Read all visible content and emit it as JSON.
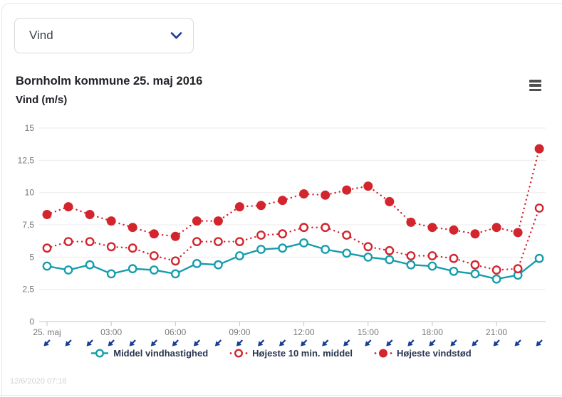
{
  "dropdown": {
    "value": "Vind"
  },
  "header": {
    "title": "Bornholm kommune 25. maj 2016",
    "subtitle": "Vind (m/s)"
  },
  "menu_icon": "hamburger-icon",
  "footer": {
    "timestamp": "12/6/2020 07:18"
  },
  "colors": {
    "teal": "#169dad",
    "red": "#d2252e",
    "navy_arrow": "#1b3e93",
    "legend_text": "#2a3550",
    "axis_text": "#787878",
    "gridline": "#ebebeb",
    "axis_line": "#c6c6c6"
  },
  "chart_data": {
    "type": "line",
    "title": "Bornholm kommune 25. maj 2016",
    "ylabel": "Vind (m/s)",
    "ylim": [
      0,
      15
    ],
    "yticks": [
      0,
      2.5,
      5,
      7.5,
      10,
      12.5,
      15
    ],
    "ytick_labels": [
      "0",
      "2,5",
      "5",
      "7,5",
      "10",
      "12,5",
      "15"
    ],
    "x_hours": [
      0,
      1,
      2,
      3,
      4,
      5,
      6,
      7,
      8,
      9,
      10,
      11,
      12,
      13,
      14,
      15,
      16,
      17,
      18,
      19,
      20,
      21,
      22,
      23
    ],
    "xticks": [
      0,
      3,
      6,
      9,
      12,
      15,
      18,
      21
    ],
    "xtick_labels": [
      "25. maj",
      "03:00",
      "06:00",
      "09:00",
      "12:00",
      "15:00",
      "18:00",
      "21:00"
    ],
    "grid": true,
    "legend_position": "bottom",
    "series": [
      {
        "name": "Middel vindhastighed",
        "color": "#169dad",
        "marker": "open-circle",
        "line": "solid",
        "values": [
          4.3,
          4.0,
          4.4,
          3.7,
          4.1,
          4.0,
          3.7,
          4.5,
          4.4,
          5.1,
          5.6,
          5.7,
          6.1,
          5.6,
          5.3,
          5.0,
          4.8,
          4.4,
          4.3,
          3.9,
          3.7,
          3.3,
          3.6,
          4.9
        ]
      },
      {
        "name": "Højeste 10 min. middel",
        "color": "#d2252e",
        "marker": "open-circle",
        "line": "dotted",
        "values": [
          5.7,
          6.2,
          6.2,
          5.8,
          5.7,
          5.1,
          4.7,
          6.2,
          6.2,
          6.2,
          6.7,
          6.8,
          7.3,
          7.3,
          6.7,
          5.8,
          5.5,
          5.1,
          5.1,
          4.9,
          4.4,
          4.0,
          4.1,
          8.8
        ]
      },
      {
        "name": "Højeste vindstød",
        "color": "#d2252e",
        "marker": "filled-circle",
        "line": "dotted",
        "values": [
          8.3,
          8.9,
          8.3,
          7.8,
          7.3,
          6.8,
          6.6,
          7.8,
          7.8,
          8.9,
          9.0,
          9.4,
          9.9,
          9.8,
          10.2,
          10.5,
          9.3,
          7.7,
          7.3,
          7.1,
          6.8,
          7.3,
          6.9,
          13.4
        ]
      }
    ],
    "wind_arrows": {
      "color": "#1b3e93",
      "directions": [
        "SW",
        "SW",
        "SW",
        "SW",
        "SW",
        "SW",
        "SW",
        "SW",
        "SW",
        "SW",
        "SW",
        "SW",
        "SW",
        "SW",
        "SW",
        "SW",
        "SW",
        "SW",
        "SW",
        "SW",
        "SW",
        "SW",
        "SW",
        "SW"
      ]
    }
  }
}
